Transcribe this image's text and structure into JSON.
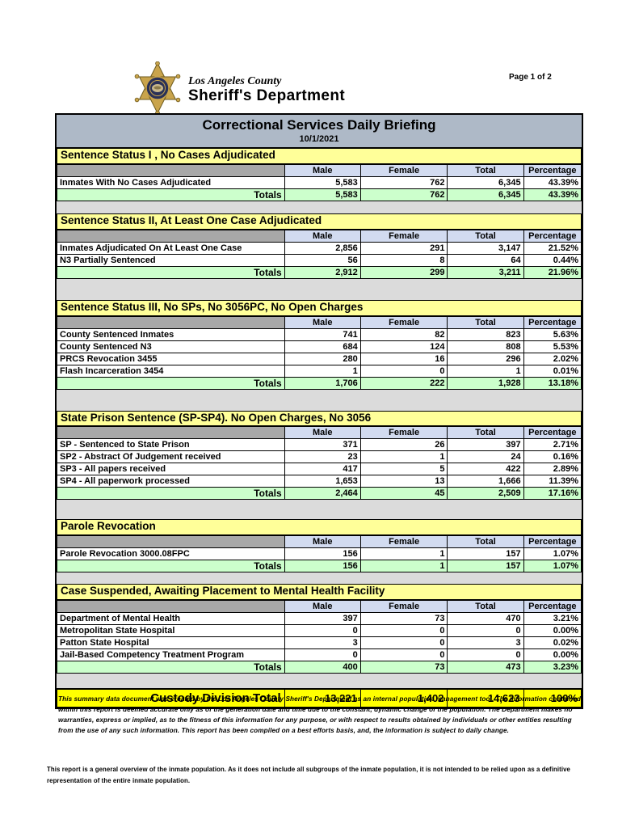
{
  "page": {
    "page_indicator": "Page 1 of 2"
  },
  "logo": {
    "county": "Los Angeles County",
    "department": "Sheriff's Department"
  },
  "title": {
    "heading": "Correctional Services Daily Briefing",
    "date": "10/1/2021"
  },
  "columns": [
    "Male",
    "Female",
    "Total",
    "Percentage"
  ],
  "totals_label": "Totals",
  "sections": [
    {
      "title": "Sentence Status I , No Cases Adjudicated",
      "rows": [
        {
          "label": "Inmates With No Cases Adjudicated",
          "male": "5,583",
          "female": "762",
          "total": "6,345",
          "percentage": "43.39%"
        }
      ],
      "totals": {
        "male": "5,583",
        "female": "762",
        "total": "6,345",
        "percentage": "43.39%"
      }
    },
    {
      "title": "Sentence Status II, At Least One Case Adjudicated",
      "rows": [
        {
          "label": "Inmates Adjudicated On At Least One Case",
          "male": "2,856",
          "female": "291",
          "total": "3,147",
          "percentage": "21.52%"
        },
        {
          "label": "N3 Partially Sentenced",
          "male": "56",
          "female": "8",
          "total": "64",
          "percentage": "0.44%"
        }
      ],
      "totals": {
        "male": "2,912",
        "female": "299",
        "total": "3,211",
        "percentage": "21.96%"
      }
    },
    {
      "title": "Sentence Status III, No SPs, No 3056PC, No Open Charges",
      "rows": [
        {
          "label": "County Sentenced Inmates",
          "male": "741",
          "female": "82",
          "total": "823",
          "percentage": "5.63%"
        },
        {
          "label": "County Sentenced N3",
          "male": "684",
          "female": "124",
          "total": "808",
          "percentage": "5.53%"
        },
        {
          "label": "PRCS Revocation 3455",
          "male": "280",
          "female": "16",
          "total": "296",
          "percentage": "2.02%"
        },
        {
          "label": "Flash Incarceration 3454",
          "male": "1",
          "female": "0",
          "total": "1",
          "percentage": "0.01%"
        }
      ],
      "totals": {
        "male": "1,706",
        "female": "222",
        "total": "1,928",
        "percentage": "13.18%"
      }
    },
    {
      "title": "State Prison Sentence (SP-SP4). No Open Charges, No 3056",
      "rows": [
        {
          "label": "SP - Sentenced to State Prison",
          "male": "371",
          "female": "26",
          "total": "397",
          "percentage": "2.71%"
        },
        {
          "label": "SP2 - Abstract Of Judgement received",
          "male": "23",
          "female": "1",
          "total": "24",
          "percentage": "0.16%"
        },
        {
          "label": "SP3 - All papers received",
          "male": "417",
          "female": "5",
          "total": "422",
          "percentage": "2.89%"
        },
        {
          "label": "SP4 - All paperwork processed",
          "male": "1,653",
          "female": "13",
          "total": "1,666",
          "percentage": "11.39%"
        }
      ],
      "totals": {
        "male": "2,464",
        "female": "45",
        "total": "2,509",
        "percentage": "17.16%"
      }
    },
    {
      "title": "Parole Revocation",
      "rows": [
        {
          "label": "Parole Revocation 3000.08FPC",
          "male": "156",
          "female": "1",
          "total": "157",
          "percentage": "1.07%"
        }
      ],
      "totals": {
        "male": "156",
        "female": "1",
        "total": "157",
        "percentage": "1.07%"
      }
    },
    {
      "title": "Case Suspended, Awaiting Placement to Mental Health Facility",
      "rows": [
        {
          "label": "Department of Mental Health",
          "male": "397",
          "female": "73",
          "total": "470",
          "percentage": "3.21%"
        },
        {
          "label": "Metropolitan State Hospital",
          "male": "0",
          "female": "0",
          "total": "0",
          "percentage": "0.00%"
        },
        {
          "label": "Patton State Hospital",
          "male": "3",
          "female": "0",
          "total": "3",
          "percentage": "0.02%"
        },
        {
          "label": "Jail-Based Competency Treatment Program",
          "male": "0",
          "female": "0",
          "total": "0",
          "percentage": "0.00%"
        }
      ],
      "totals": {
        "male": "400",
        "female": "73",
        "total": "473",
        "percentage": "3.23%"
      }
    }
  ],
  "grand_total": {
    "label": "Custody Division Total",
    "male": "13,221",
    "female": "1,402",
    "total": "14,623",
    "percentage": "100%"
  },
  "disclaimers": {
    "primary": "This summary data document was created by the Los Angeles County Sheriff's Department as an internal population management tool.  The information contained within this report is deemed accurate only as of the generation date and time due to the constant, dynamic change of the population.  The Department makes no warranties, express or implied, as to the fitness of this information for any purpose, or with respect to results obtained by individuals or other entities resulting from the use of any such information.  This report has been compiled on a best efforts basis, and, the information is subject to daily change.",
    "secondary": "This report is a general overview of the inmate population.  As it does not include all subgroups of the inmate population, it is not intended to be relied upon as a definitive representation of the entire inmate population."
  },
  "colors": {
    "title_bar": "#AEB9C7",
    "section_yellow": "#FFFF99",
    "hdr_blue": "#D2DBF0",
    "hdr_gray": "#A8A8A8",
    "totals_green": "#CCFFCC",
    "grand_yellow": "#FFFF00",
    "box_gray": "#DBDBDB",
    "badge_gold": "#C9A44C",
    "badge_navy": "#2A3157"
  }
}
